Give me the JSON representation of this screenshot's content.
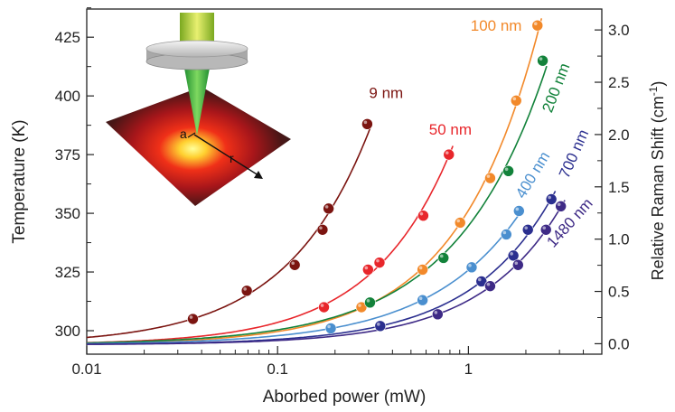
{
  "chart_data": {
    "type": "scatter",
    "xlabel": "Aborbed power (mW)",
    "ylabel_left": "Temperature (K)",
    "ylabel_right": "Relative Raman Shift (cm",
    "ylabel_right_sup": "-1",
    "ylabel_right_end": ")",
    "x_scale": "log",
    "xlim": [
      0.01,
      5
    ],
    "ylim_left": [
      290,
      437
    ],
    "ylim_right": [
      -0.1,
      3.2
    ],
    "x_ticks": [
      {
        "v": 0.01,
        "label": "0.01"
      },
      {
        "v": 0.1,
        "label": "0.1"
      },
      {
        "v": 1,
        "label": "1"
      }
    ],
    "y_ticks_left": [
      {
        "v": 300,
        "label": "300"
      },
      {
        "v": 325,
        "label": "325"
      },
      {
        "v": 350,
        "label": "350"
      },
      {
        "v": 375,
        "label": "375"
      },
      {
        "v": 400,
        "label": "400"
      },
      {
        "v": 425,
        "label": "425"
      }
    ],
    "y_ticks_right": [
      {
        "v": 0.0,
        "label": "0.0"
      },
      {
        "v": 0.5,
        "label": "0.5"
      },
      {
        "v": 1.0,
        "label": "1.0"
      },
      {
        "v": 1.5,
        "label": "1.5"
      },
      {
        "v": 2.0,
        "label": "2.0"
      },
      {
        "v": 2.5,
        "label": "2.5"
      },
      {
        "v": 3.0,
        "label": "3.0"
      }
    ],
    "grid": false,
    "series": [
      {
        "name": "9 nm",
        "color": "#7b1410",
        "points": [
          [
            0.036,
            305
          ],
          [
            0.069,
            317
          ],
          [
            0.123,
            328
          ],
          [
            0.172,
            343
          ],
          [
            0.185,
            352
          ],
          [
            0.295,
            388
          ]
        ]
      },
      {
        "name": "50 nm",
        "color": "#e8262b",
        "points": [
          [
            0.175,
            310
          ],
          [
            0.298,
            326
          ],
          [
            0.342,
            329
          ],
          [
            0.58,
            349
          ],
          [
            0.79,
            375
          ]
        ]
      },
      {
        "name": "100 nm",
        "color": "#f2892a",
        "points": [
          [
            0.275,
            310
          ],
          [
            0.575,
            326
          ],
          [
            0.905,
            346
          ],
          [
            1.3,
            365
          ],
          [
            1.78,
            398
          ],
          [
            2.3,
            430
          ]
        ]
      },
      {
        "name": "200 nm",
        "color": "#12823a",
        "points": [
          [
            0.305,
            312
          ],
          [
            0.74,
            331
          ],
          [
            1.62,
            368
          ],
          [
            2.45,
            415
          ]
        ]
      },
      {
        "name": "400 nm",
        "color": "#4a8fcf",
        "points": [
          [
            0.19,
            301
          ],
          [
            0.575,
            313
          ],
          [
            1.04,
            327
          ],
          [
            1.58,
            341
          ],
          [
            1.84,
            351
          ]
        ]
      },
      {
        "name": "700 nm",
        "color": "#2b2f8f",
        "points": [
          [
            0.345,
            302
          ],
          [
            1.17,
            321
          ],
          [
            1.72,
            332
          ],
          [
            2.05,
            343
          ],
          [
            2.72,
            356
          ]
        ]
      },
      {
        "name": "1480 nm",
        "color": "#3e2a86",
        "points": [
          [
            0.69,
            307
          ],
          [
            1.3,
            319
          ],
          [
            1.82,
            328
          ],
          [
            2.55,
            343
          ],
          [
            3.05,
            353
          ]
        ]
      }
    ],
    "labels": [
      {
        "text": "9 nm",
        "series": 0
      },
      {
        "text": "50 nm",
        "series": 1
      },
      {
        "text": "100 nm",
        "series": 2
      },
      {
        "text": "200 nm",
        "series": 3
      },
      {
        "text": "400 nm",
        "series": 4
      },
      {
        "text": "700 nm",
        "series": 5
      },
      {
        "text": "1480 nm",
        "series": 6
      }
    ],
    "inset": {
      "label_a": "a",
      "label_r": "r"
    }
  }
}
